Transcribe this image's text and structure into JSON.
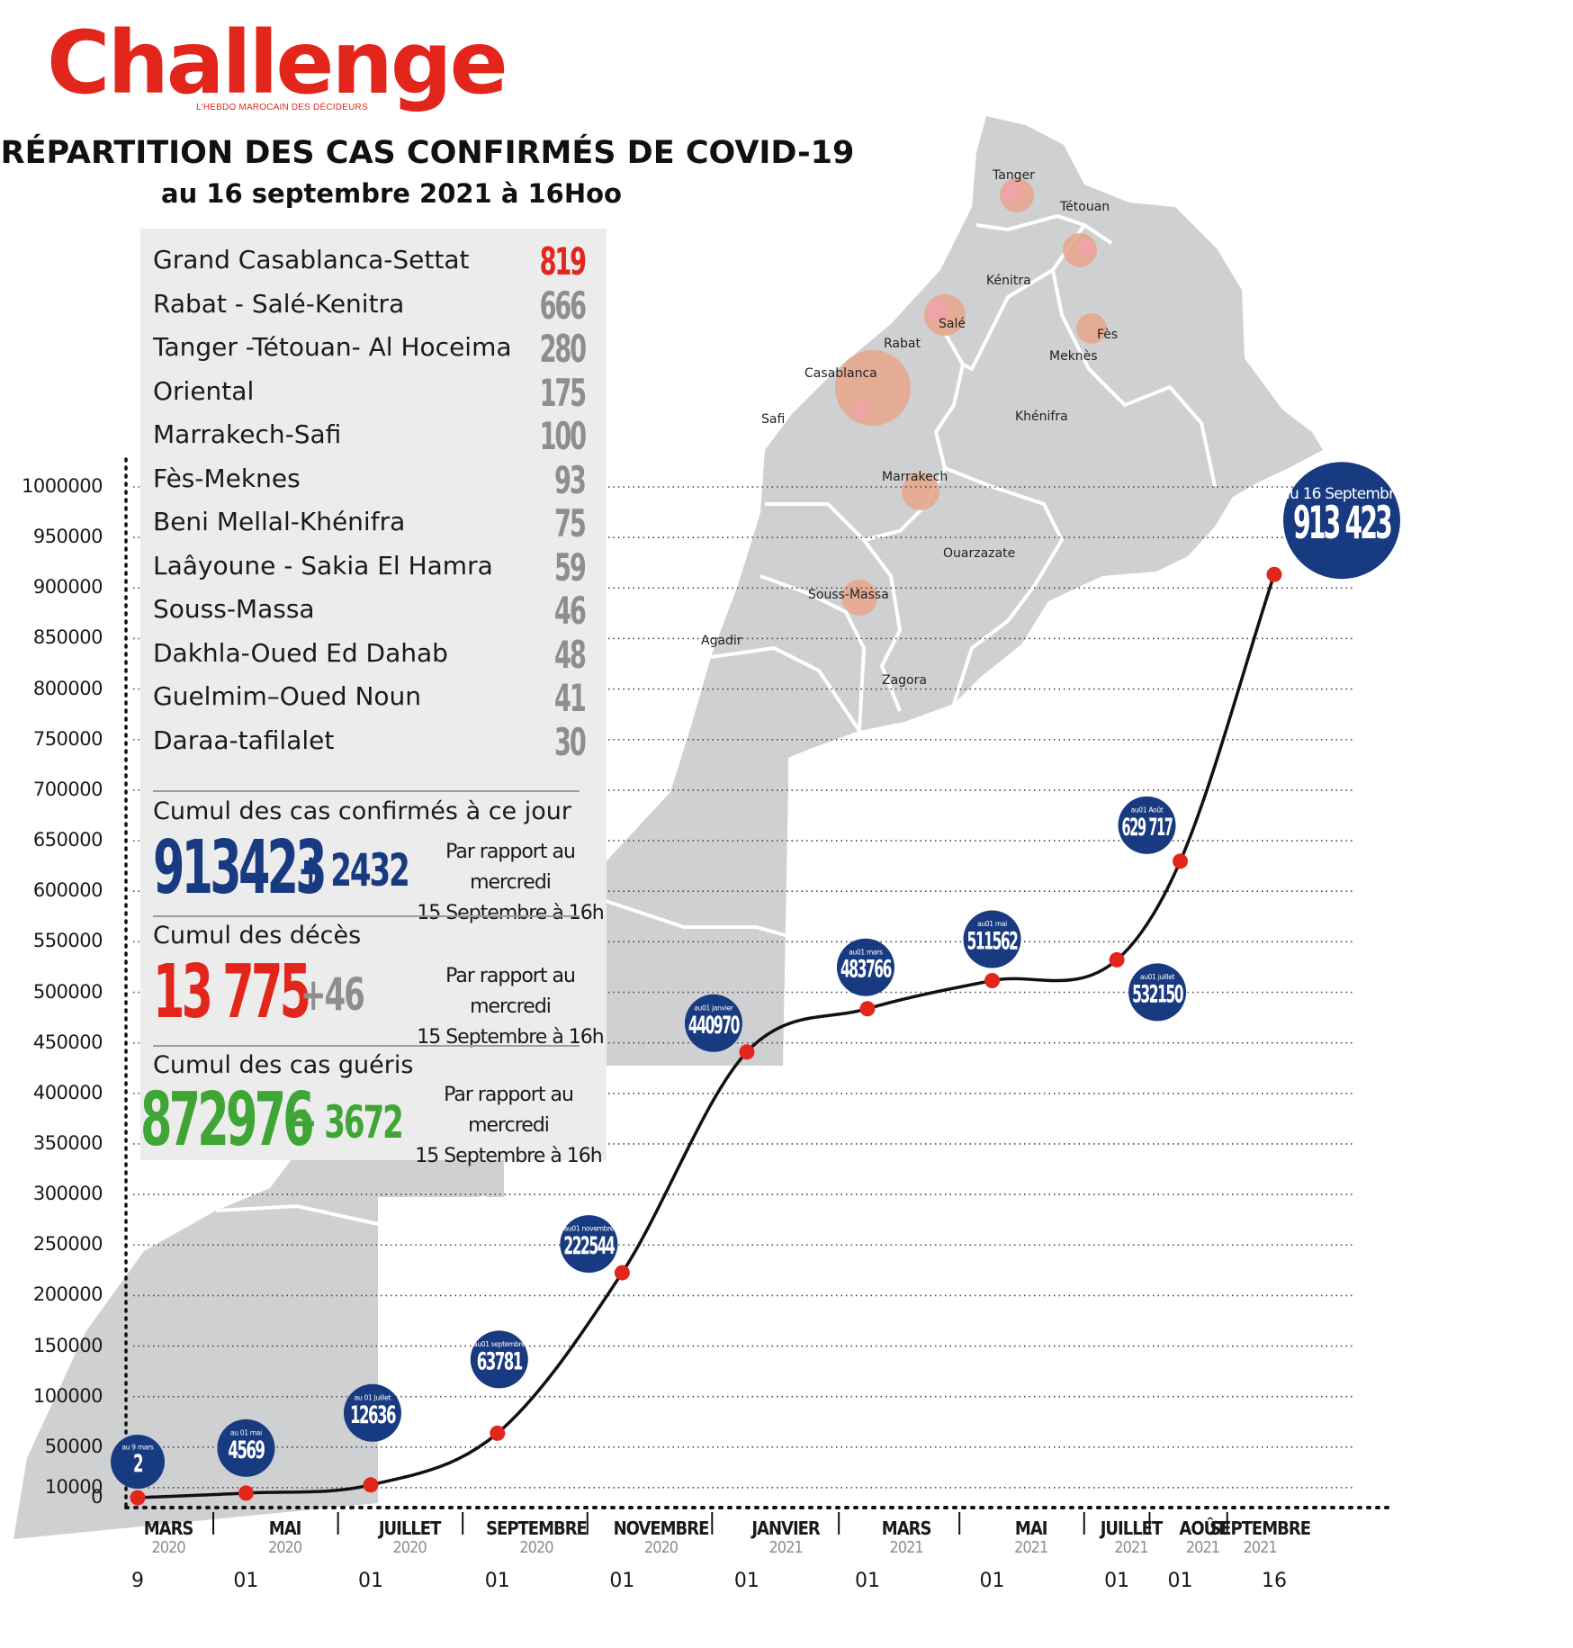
{
  "header": {
    "logo": "Challenge",
    "logo_tagline": "L'HEBDO MAROCAIN DES DÉCIDEURS",
    "title": "RÉPARTITION DES CAS CONFIRMÉS DE COVID-19",
    "subtitle": "au 16 septembre 2021 à 16Hoo"
  },
  "regions": [
    {
      "name": "Grand Casablanca-Settat",
      "value": "819",
      "highlight": true
    },
    {
      "name": "Rabat - Salé-Kenitra",
      "value": "666"
    },
    {
      "name": "Tanger -Tétouan- Al Hoceima",
      "value": "280"
    },
    {
      "name": "Oriental",
      "value": "175"
    },
    {
      "name": "Marrakech-Safi",
      "value": "100"
    },
    {
      "name": "Fès-Meknes",
      "value": "93"
    },
    {
      "name": "Beni Mellal-Khénifra",
      "value": "75"
    },
    {
      "name": "Laâyoune - Sakia El Hamra",
      "value": "59"
    },
    {
      "name": "Souss-Massa",
      "value": "46"
    },
    {
      "name": "Dakhla-Oued Ed Dahab",
      "value": "48"
    },
    {
      "name": "Guelmim–Oued Noun",
      "value": "41"
    },
    {
      "name": "Daraa-tafilalet",
      "value": "30"
    }
  ],
  "summary": {
    "cases_label": "Cumul des cas confirmés à ce jour",
    "cases_total": "913423",
    "cases_delta": "+ 2432",
    "deaths_label": "Cumul des décès",
    "deaths_total": "13 775",
    "deaths_delta": "+46",
    "recovered_label": "Cumul des cas guéris",
    "recovered_total": "872976",
    "recovered_delta": "+ 3672",
    "compare_line1": "Par rapport au mercredi",
    "compare_line2": "15 Septembre à 16h"
  },
  "map_labels": [
    "Tanger",
    "Tétouan",
    "Kénitra",
    "Salé",
    "Fès",
    "Rabat",
    "Meknès",
    "Casablanca",
    "Safi",
    "Khénifra",
    "Marrakech",
    "Ouarzazate",
    "Souss-Massa",
    "Agadir",
    "Zagora"
  ],
  "colors": {
    "accent_red": "#e3261b",
    "navy": "#173a80",
    "green": "#3fa535",
    "map_grey": "#cfd0d2",
    "bubble": "#e7a78e"
  },
  "chart_data": {
    "type": "line",
    "title": "RÉPARTITION DES CAS CONFIRMÉS DE COVID-19",
    "xlabel": "",
    "ylabel": "",
    "ylim": [
      0,
      1000000
    ],
    "y_ticks": [
      0,
      10000,
      50000,
      100000,
      150000,
      200000,
      250000,
      300000,
      350000,
      400000,
      450000,
      500000,
      550000,
      600000,
      650000,
      700000,
      750000,
      800000,
      850000,
      900000,
      950000,
      1000000
    ],
    "x_months": [
      {
        "month": "MARS",
        "year": "2020"
      },
      {
        "month": "MAI",
        "year": "2020"
      },
      {
        "month": "JUILLET",
        "year": "2020"
      },
      {
        "month": "SEPTEMBRE",
        "year": "2020"
      },
      {
        "month": "NOVEMBRE",
        "year": "2020"
      },
      {
        "month": "JANVIER",
        "year": "2021"
      },
      {
        "month": "MARS",
        "year": "2021"
      },
      {
        "month": "MAI",
        "year": "2021"
      },
      {
        "month": "JUILLET",
        "year": "2021"
      },
      {
        "month": "AOÛT",
        "year": "2021"
      },
      {
        "month": "SEPTEMBRE",
        "year": "2021"
      }
    ],
    "x_days": [
      "9",
      "01",
      "01",
      "01",
      "01",
      "01",
      "01",
      "01",
      "01",
      "01",
      "16"
    ],
    "points": [
      {
        "date": "2020-03-09",
        "value": 2,
        "label": "2",
        "caption": "au 9 mars"
      },
      {
        "date": "2020-05-01",
        "value": 4569,
        "label": "4569",
        "caption": "au 01 mai"
      },
      {
        "date": "2020-07-01",
        "value": 12636,
        "label": "12636",
        "caption": "au 01 Juillet"
      },
      {
        "date": "2020-09-01",
        "value": 63781,
        "label": "63781",
        "caption": "au01 septembre"
      },
      {
        "date": "2020-11-01",
        "value": 222544,
        "label": "222544",
        "caption": "au01 novembre"
      },
      {
        "date": "2021-01-01",
        "value": 440970,
        "label": "440970",
        "caption": "au01 janvier"
      },
      {
        "date": "2021-03-01",
        "value": 483766,
        "label": "483766",
        "caption": "au01 mars"
      },
      {
        "date": "2021-05-01",
        "value": 511562,
        "label": "511562",
        "caption": "au01 mai"
      },
      {
        "date": "2021-07-01",
        "value": 532150,
        "label": "532150",
        "caption": "au01 juillet"
      },
      {
        "date": "2021-08-01",
        "value": 629717,
        "label": "629 717",
        "caption": "au01 Août"
      },
      {
        "date": "2021-09-16",
        "value": 913423,
        "label": "913 423",
        "caption": "au 16 Septembre"
      }
    ]
  }
}
